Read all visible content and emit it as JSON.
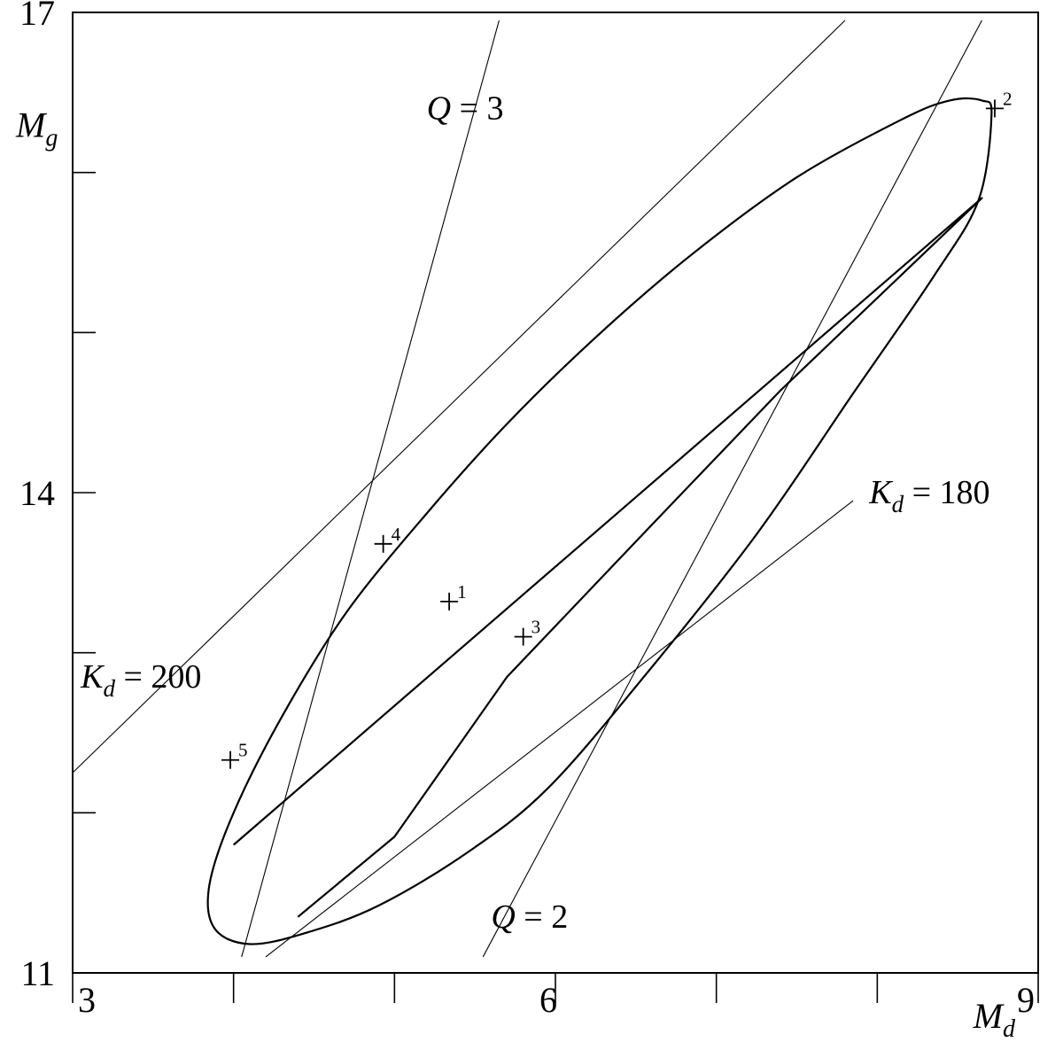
{
  "chart_data": {
    "type": "line",
    "title": "",
    "xlabel": {
      "main": "M",
      "sub": "d"
    },
    "ylabel": {
      "main": "M",
      "sub": "g"
    },
    "xlim": [
      3,
      9
    ],
    "ylim": [
      11,
      17
    ],
    "x_tick_values": [
      3,
      4,
      5,
      6,
      7,
      8,
      9
    ],
    "y_tick_values": [
      11,
      12,
      13,
      14,
      15,
      16,
      17
    ],
    "x_tick_labels": [
      {
        "value": 3,
        "label": "3"
      },
      {
        "value": 6,
        "label": "6"
      },
      {
        "value": 9,
        "label": "9"
      }
    ],
    "y_tick_labels": [
      {
        "value": 17,
        "label": "17"
      },
      {
        "value": 14,
        "label": "14"
      },
      {
        "value": 11,
        "label": "11"
      }
    ],
    "grid": false,
    "ellipse": {
      "points": [
        [
          8.65,
          16.45
        ],
        [
          8.71,
          16.36
        ],
        [
          8.63,
          15.83
        ],
        [
          8.35,
          15.35
        ],
        [
          7.85,
          14.62
        ],
        [
          7.25,
          13.74
        ],
        [
          6.55,
          12.85
        ],
        [
          5.95,
          12.15
        ],
        [
          5.45,
          11.75
        ],
        [
          4.9,
          11.42
        ],
        [
          4.45,
          11.25
        ],
        [
          4.1,
          11.18
        ],
        [
          3.88,
          11.28
        ],
        [
          3.85,
          11.55
        ],
        [
          4.0,
          12.0
        ],
        [
          4.3,
          12.6
        ],
        [
          4.7,
          13.25
        ],
        [
          5.2,
          13.87
        ],
        [
          5.7,
          14.43
        ],
        [
          6.25,
          14.97
        ],
        [
          6.85,
          15.49
        ],
        [
          7.5,
          15.97
        ],
        [
          8.15,
          16.33
        ],
        [
          8.45,
          16.45
        ],
        [
          8.65,
          16.45
        ]
      ]
    },
    "inner_boundary": {
      "points": [
        [
          4.0,
          11.8
        ],
        [
          8.65,
          15.84
        ],
        [
          7.4,
          14.64
        ],
        [
          6.6,
          13.8
        ],
        [
          5.7,
          12.85
        ],
        [
          5.0,
          11.85
        ],
        [
          4.4,
          11.35
        ]
      ]
    },
    "reference_lines": [
      {
        "name": "Q = 3",
        "label_main": "Q",
        "label_sub": "",
        "label_value": " = 3",
        "from": [
          4.05,
          11.1
        ],
        "to": [
          5.65,
          16.95
        ],
        "label_at": [
          5.2,
          16.4
        ]
      },
      {
        "name": "Q = 2",
        "label_main": "Q",
        "label_sub": "",
        "label_value": " = 2",
        "from": [
          5.55,
          11.1
        ],
        "to": [
          8.65,
          16.95
        ],
        "label_at": [
          5.6,
          11.35
        ]
      },
      {
        "name": "Kd = 200",
        "label_main": "K",
        "label_sub": "d",
        "label_value": " = 200",
        "from": [
          3.0,
          12.25
        ],
        "to": [
          7.8,
          16.95
        ],
        "label_at": [
          3.05,
          12.85
        ]
      },
      {
        "name": "Kd = 180",
        "label_main": "K",
        "label_sub": "d",
        "label_value": " = 180",
        "from": [
          4.2,
          11.1
        ],
        "to": [
          7.85,
          13.95
        ],
        "label_at": [
          7.95,
          14.0
        ]
      }
    ],
    "points": [
      {
        "label": "1",
        "x": 5.34,
        "y": 13.32
      },
      {
        "label": "2",
        "x": 8.73,
        "y": 16.4
      },
      {
        "label": "3",
        "x": 5.8,
        "y": 13.1
      },
      {
        "label": "4",
        "x": 4.93,
        "y": 13.68
      },
      {
        "label": "5",
        "x": 3.98,
        "y": 12.33
      }
    ]
  }
}
